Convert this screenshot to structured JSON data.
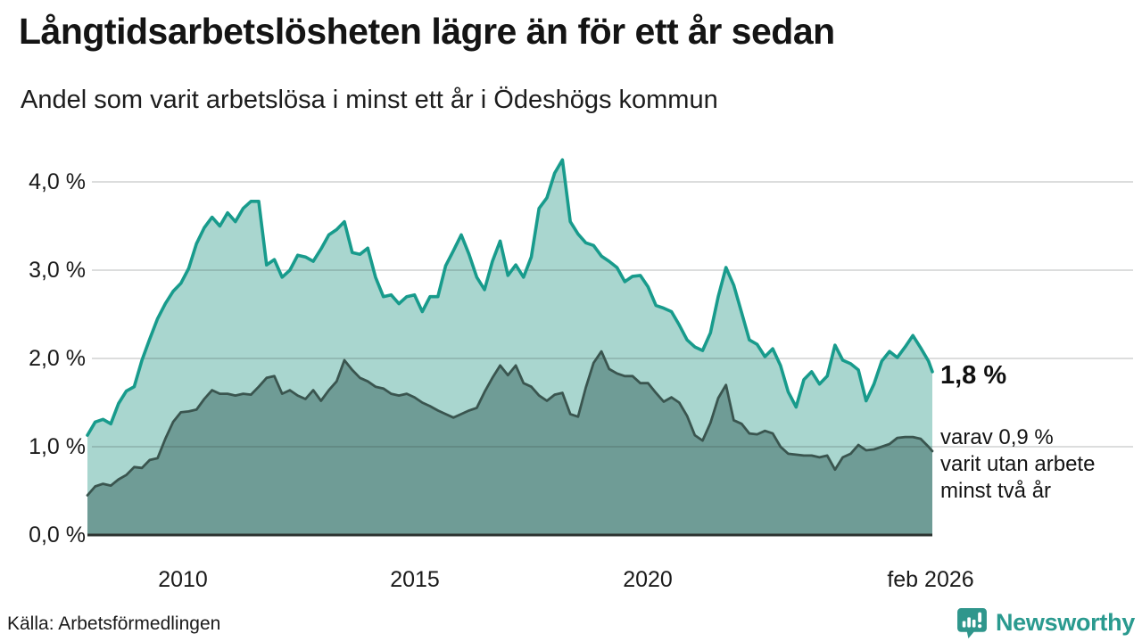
{
  "header": {
    "title": "Långtidsarbetslösheten lägre än för ett år sedan",
    "subtitle": "Andel som varit arbetslösa i minst ett år i Ödeshögs kommun"
  },
  "chart": {
    "y_ticks": [
      {
        "label": "4,0 %",
        "value": 4
      },
      {
        "label": "3,0 %",
        "value": 3
      },
      {
        "label": "2,0 %",
        "value": 2
      },
      {
        "label": "1,0 %",
        "value": 1
      },
      {
        "label": "0,0 %",
        "value": 0
      }
    ],
    "x_ticks": [
      {
        "label": "2010",
        "t": 2010.0
      },
      {
        "label": "2015",
        "t": 2015.0
      },
      {
        "label": "2020",
        "t": 2020.0
      },
      {
        "label": "feb 2026",
        "t": 2026.083
      }
    ],
    "annotation_total": "1,8 %",
    "annotation_sub_lines": [
      "varav 0,9 %",
      "varit utan arbete",
      "minst två år"
    ]
  },
  "chart_data": {
    "type": "area",
    "title": "Långtidsarbetslösheten lägre än för ett år sedan",
    "subtitle": "Andel som varit arbetslösa i minst ett år i Ödeshögs kommun",
    "unit": "%",
    "x_start": 2008.0,
    "x_step": 0.1666667,
    "x_end": 2026.083,
    "ylim": [
      0,
      4.3
    ],
    "grid": "horizontal",
    "x_tick_values": [
      2010,
      2015,
      2020,
      2026.083
    ],
    "x_tick_labels": [
      "2010",
      "2015",
      "2020",
      "feb 2026"
    ],
    "y_tick_labels": [
      "0,0 %",
      "1,0 %",
      "2,0 %",
      "3,0 %",
      "4,0 %"
    ],
    "series": [
      {
        "name": "Andel som varit arbetslösa minst ett år",
        "color": "#189b8c",
        "fill": "#a9d6cf",
        "latest_label": "1,8 %",
        "values": [
          1.13,
          1.28,
          1.31,
          1.26,
          1.49,
          1.63,
          1.68,
          1.98,
          2.22,
          2.45,
          2.62,
          2.76,
          2.85,
          3.02,
          3.3,
          3.48,
          3.6,
          3.5,
          3.65,
          3.55,
          3.7,
          3.78,
          3.78,
          3.06,
          3.12,
          2.92,
          3.0,
          3.17,
          3.15,
          3.1,
          3.24,
          3.4,
          3.46,
          3.55,
          3.2,
          3.18,
          3.25,
          2.92,
          2.7,
          2.72,
          2.62,
          2.7,
          2.72,
          2.53,
          2.7,
          2.7,
          3.05,
          3.22,
          3.4,
          3.18,
          2.92,
          2.78,
          3.1,
          3.33,
          2.94,
          3.06,
          2.92,
          3.15,
          3.7,
          3.82,
          4.1,
          4.25,
          3.55,
          3.41,
          3.31,
          3.28,
          3.16,
          3.1,
          3.03,
          2.87,
          2.93,
          2.94,
          2.81,
          2.6,
          2.57,
          2.53,
          2.38,
          2.21,
          2.13,
          2.09,
          2.29,
          2.7,
          3.03,
          2.83,
          2.52,
          2.21,
          2.16,
          2.02,
          2.11,
          1.92,
          1.62,
          1.45,
          1.76,
          1.85,
          1.71,
          1.8,
          2.15,
          1.98,
          1.94,
          1.87,
          1.52,
          1.71,
          1.97,
          2.08,
          2.01,
          2.13,
          2.26,
          2.12,
          1.97,
          1.85
        ]
      },
      {
        "name": "varav utan arbete minst två år",
        "color": "#3a554f",
        "fill": "#6f9c96",
        "latest_label": "0,9 %",
        "values": [
          0.45,
          0.55,
          0.58,
          0.56,
          0.63,
          0.68,
          0.77,
          0.76,
          0.85,
          0.87,
          1.09,
          1.28,
          1.39,
          1.4,
          1.42,
          1.54,
          1.64,
          1.6,
          1.6,
          1.58,
          1.6,
          1.59,
          1.68,
          1.78,
          1.8,
          1.6,
          1.64,
          1.58,
          1.54,
          1.64,
          1.52,
          1.64,
          1.74,
          1.98,
          1.87,
          1.78,
          1.74,
          1.68,
          1.66,
          1.6,
          1.58,
          1.6,
          1.56,
          1.5,
          1.46,
          1.41,
          1.37,
          1.33,
          1.37,
          1.41,
          1.44,
          1.62,
          1.78,
          1.92,
          1.81,
          1.92,
          1.72,
          1.68,
          1.58,
          1.52,
          1.59,
          1.61,
          1.37,
          1.34,
          1.67,
          1.95,
          2.08,
          1.88,
          1.83,
          1.8,
          1.8,
          1.72,
          1.72,
          1.61,
          1.51,
          1.56,
          1.5,
          1.35,
          1.13,
          1.07,
          1.27,
          1.55,
          1.7,
          1.3,
          1.26,
          1.15,
          1.14,
          1.18,
          1.15,
          1.0,
          0.92,
          0.91,
          0.9,
          0.9,
          0.88,
          0.9,
          0.74,
          0.88,
          0.92,
          1.02,
          0.96,
          0.97,
          1.0,
          1.03,
          1.1,
          1.11,
          1.11,
          1.09,
          1.0,
          0.95
        ]
      }
    ]
  },
  "colors": {
    "line_total": "#189b8c",
    "fill_total": "#a9d6cf",
    "line_two_years": "#3a554f",
    "fill_two_years": "#6f9c96",
    "axis": "#2c3330",
    "gridline_base": "#262b2e",
    "brand_teal": "#2a9a8f"
  },
  "footer": {
    "source": "Källa: Arbetsförmedlingen",
    "brand": "Newsworthy"
  }
}
